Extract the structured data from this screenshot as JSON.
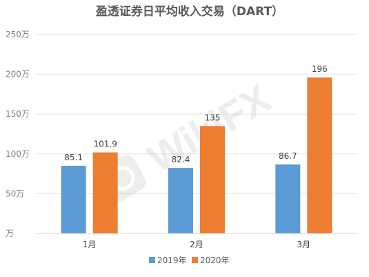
{
  "chart_data": {
    "type": "bar",
    "title": "盈透证券日平均收入交易（DART）",
    "categories": [
      "1月",
      "2月",
      "3月"
    ],
    "series": [
      {
        "name": "2019年",
        "values": [
          85.1,
          82.4,
          86.7
        ],
        "labels": [
          "85.1",
          "82.4",
          "86.7"
        ],
        "color": "#5b9bd5"
      },
      {
        "name": "2020年",
        "values": [
          101.9,
          135,
          196
        ],
        "labels": [
          "101.9",
          "135",
          "196"
        ],
        "color": "#ed7d31"
      }
    ],
    "y_ticks": [
      0,
      50,
      100,
      150,
      200,
      250
    ],
    "y_tick_labels": [
      "万",
      "50万",
      "100万",
      "150万",
      "200万",
      "250万"
    ],
    "ylim": [
      0,
      250
    ],
    "grid": true,
    "legend_position": "bottom"
  },
  "watermark": "WikiFX"
}
